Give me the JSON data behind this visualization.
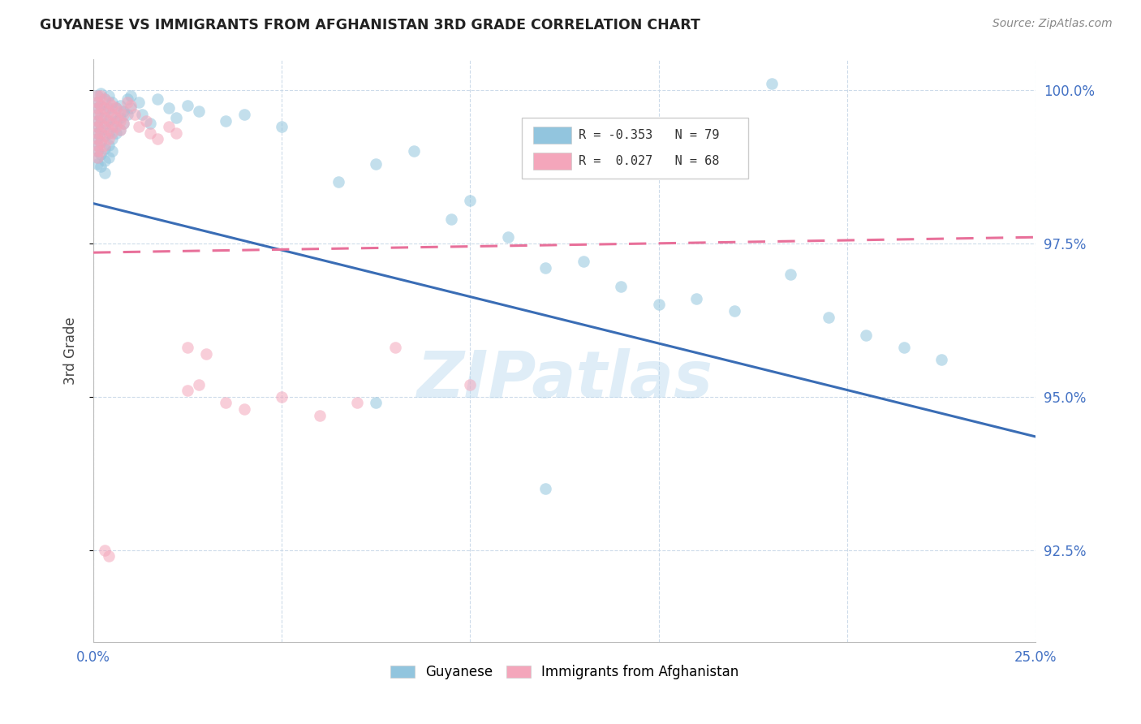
{
  "title": "GUYANESE VS IMMIGRANTS FROM AFGHANISTAN 3RD GRADE CORRELATION CHART",
  "source": "Source: ZipAtlas.com",
  "ylabel": "3rd Grade",
  "xlim": [
    0.0,
    0.25
  ],
  "ylim": [
    0.91,
    1.005
  ],
  "xtick_positions": [
    0.0,
    0.05,
    0.1,
    0.15,
    0.2,
    0.25
  ],
  "xtick_labels": [
    "0.0%",
    "",
    "",
    "",
    "",
    "25.0%"
  ],
  "ytick_positions": [
    0.925,
    0.95,
    0.975,
    1.0
  ],
  "ytick_labels": [
    "92.5%",
    "95.0%",
    "97.5%",
    "100.0%"
  ],
  "blue_color": "#92c5de",
  "pink_color": "#f4a6bb",
  "blue_line_color": "#3a6db5",
  "pink_line_color": "#e8709a",
  "watermark": "ZIPatlas",
  "blue_line": {
    "x0": 0.0,
    "y0": 0.9815,
    "x1": 0.25,
    "y1": 0.9435
  },
  "pink_line": {
    "x0": 0.0,
    "y0": 0.9735,
    "x1": 0.25,
    "y1": 0.976
  },
  "blue_scatter": [
    [
      0.001,
      0.999
    ],
    [
      0.001,
      0.998
    ],
    [
      0.001,
      0.997
    ],
    [
      0.001,
      0.996
    ],
    [
      0.001,
      0.995
    ],
    [
      0.001,
      0.994
    ],
    [
      0.001,
      0.993
    ],
    [
      0.001,
      0.992
    ],
    [
      0.001,
      0.991
    ],
    [
      0.001,
      0.99
    ],
    [
      0.001,
      0.989
    ],
    [
      0.001,
      0.988
    ],
    [
      0.002,
      0.9995
    ],
    [
      0.002,
      0.9975
    ],
    [
      0.002,
      0.9955
    ],
    [
      0.002,
      0.9935
    ],
    [
      0.002,
      0.9915
    ],
    [
      0.002,
      0.9895
    ],
    [
      0.002,
      0.9875
    ],
    [
      0.003,
      0.9985
    ],
    [
      0.003,
      0.9965
    ],
    [
      0.003,
      0.9945
    ],
    [
      0.003,
      0.9925
    ],
    [
      0.003,
      0.9905
    ],
    [
      0.003,
      0.9885
    ],
    [
      0.003,
      0.9865
    ],
    [
      0.004,
      0.999
    ],
    [
      0.004,
      0.997
    ],
    [
      0.004,
      0.995
    ],
    [
      0.004,
      0.993
    ],
    [
      0.004,
      0.991
    ],
    [
      0.004,
      0.989
    ],
    [
      0.005,
      0.998
    ],
    [
      0.005,
      0.996
    ],
    [
      0.005,
      0.994
    ],
    [
      0.005,
      0.992
    ],
    [
      0.005,
      0.99
    ],
    [
      0.006,
      0.997
    ],
    [
      0.006,
      0.995
    ],
    [
      0.006,
      0.993
    ],
    [
      0.007,
      0.9975
    ],
    [
      0.007,
      0.9955
    ],
    [
      0.007,
      0.9935
    ],
    [
      0.008,
      0.9965
    ],
    [
      0.008,
      0.9945
    ],
    [
      0.009,
      0.9985
    ],
    [
      0.009,
      0.996
    ],
    [
      0.01,
      0.999
    ],
    [
      0.01,
      0.997
    ],
    [
      0.012,
      0.998
    ],
    [
      0.013,
      0.996
    ],
    [
      0.015,
      0.9945
    ],
    [
      0.017,
      0.9985
    ],
    [
      0.02,
      0.997
    ],
    [
      0.022,
      0.9955
    ],
    [
      0.025,
      0.9975
    ],
    [
      0.028,
      0.9965
    ],
    [
      0.035,
      0.995
    ],
    [
      0.04,
      0.996
    ],
    [
      0.05,
      0.994
    ],
    [
      0.065,
      0.985
    ],
    [
      0.075,
      0.988
    ],
    [
      0.085,
      0.99
    ],
    [
      0.095,
      0.979
    ],
    [
      0.1,
      0.982
    ],
    [
      0.11,
      0.976
    ],
    [
      0.12,
      0.971
    ],
    [
      0.13,
      0.972
    ],
    [
      0.14,
      0.968
    ],
    [
      0.15,
      0.965
    ],
    [
      0.16,
      0.966
    ],
    [
      0.17,
      0.964
    ],
    [
      0.185,
      0.97
    ],
    [
      0.195,
      0.963
    ],
    [
      0.205,
      0.96
    ],
    [
      0.215,
      0.958
    ],
    [
      0.225,
      0.956
    ],
    [
      0.075,
      0.949
    ],
    [
      0.12,
      0.935
    ],
    [
      0.18,
      1.001
    ]
  ],
  "pink_scatter": [
    [
      0.001,
      0.999
    ],
    [
      0.001,
      0.998
    ],
    [
      0.001,
      0.997
    ],
    [
      0.001,
      0.996
    ],
    [
      0.001,
      0.995
    ],
    [
      0.001,
      0.994
    ],
    [
      0.001,
      0.993
    ],
    [
      0.001,
      0.992
    ],
    [
      0.001,
      0.991
    ],
    [
      0.001,
      0.99
    ],
    [
      0.001,
      0.989
    ],
    [
      0.002,
      0.999
    ],
    [
      0.002,
      0.9975
    ],
    [
      0.002,
      0.996
    ],
    [
      0.002,
      0.9945
    ],
    [
      0.002,
      0.993
    ],
    [
      0.002,
      0.9915
    ],
    [
      0.002,
      0.99
    ],
    [
      0.003,
      0.9985
    ],
    [
      0.003,
      0.997
    ],
    [
      0.003,
      0.9955
    ],
    [
      0.003,
      0.994
    ],
    [
      0.003,
      0.9925
    ],
    [
      0.003,
      0.991
    ],
    [
      0.004,
      0.998
    ],
    [
      0.004,
      0.9965
    ],
    [
      0.004,
      0.995
    ],
    [
      0.004,
      0.9935
    ],
    [
      0.004,
      0.992
    ],
    [
      0.005,
      0.9975
    ],
    [
      0.005,
      0.996
    ],
    [
      0.005,
      0.9945
    ],
    [
      0.005,
      0.993
    ],
    [
      0.006,
      0.997
    ],
    [
      0.006,
      0.9955
    ],
    [
      0.006,
      0.994
    ],
    [
      0.007,
      0.9965
    ],
    [
      0.007,
      0.995
    ],
    [
      0.007,
      0.9935
    ],
    [
      0.008,
      0.996
    ],
    [
      0.008,
      0.9945
    ],
    [
      0.009,
      0.998
    ],
    [
      0.01,
      0.9975
    ],
    [
      0.011,
      0.996
    ],
    [
      0.012,
      0.994
    ],
    [
      0.014,
      0.995
    ],
    [
      0.015,
      0.993
    ],
    [
      0.017,
      0.992
    ],
    [
      0.02,
      0.994
    ],
    [
      0.022,
      0.993
    ],
    [
      0.025,
      0.958
    ],
    [
      0.03,
      0.957
    ],
    [
      0.025,
      0.951
    ],
    [
      0.028,
      0.952
    ],
    [
      0.035,
      0.949
    ],
    [
      0.04,
      0.948
    ],
    [
      0.05,
      0.95
    ],
    [
      0.06,
      0.947
    ],
    [
      0.07,
      0.949
    ],
    [
      0.08,
      0.958
    ],
    [
      0.1,
      0.952
    ],
    [
      0.003,
      0.925
    ],
    [
      0.004,
      0.924
    ]
  ]
}
